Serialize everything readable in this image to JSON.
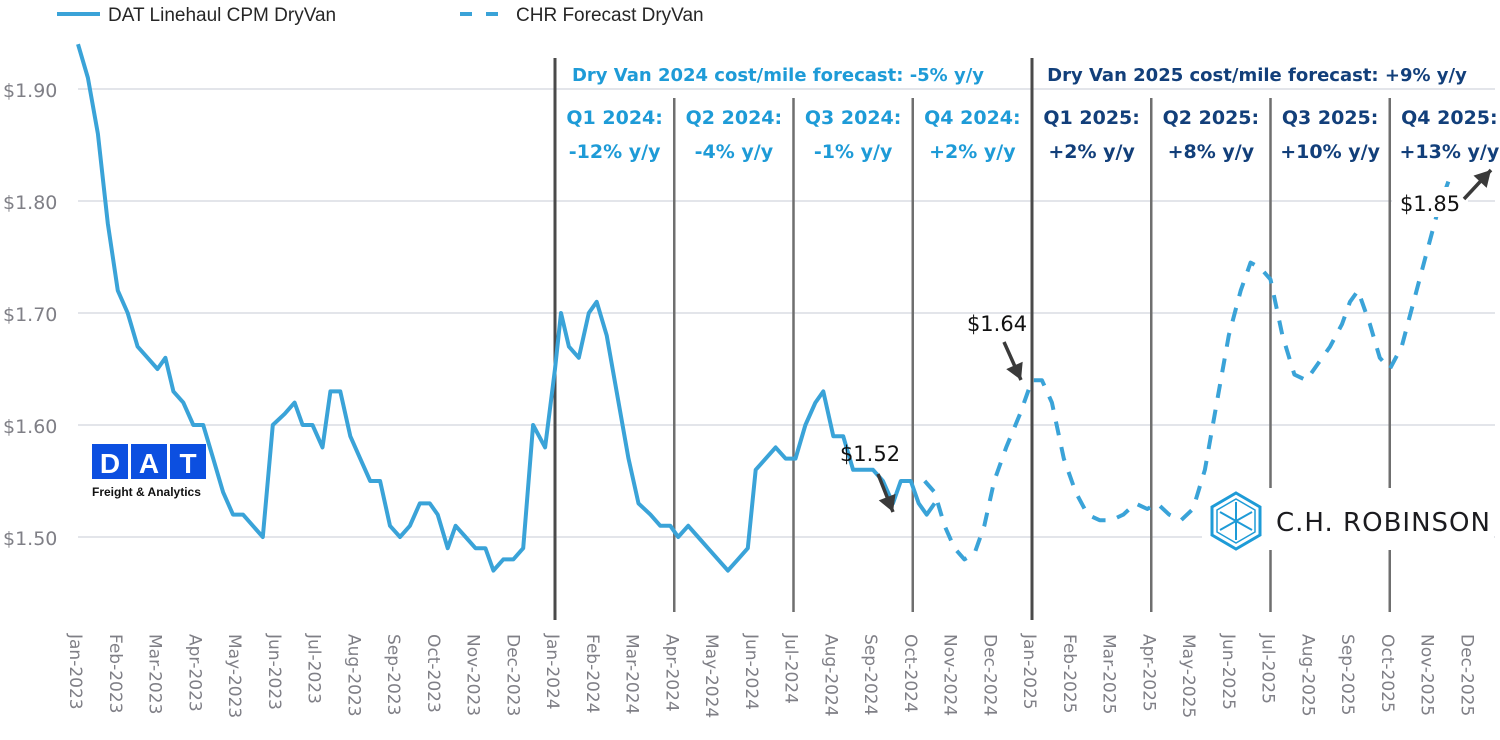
{
  "chart_data": {
    "type": "line",
    "title": "",
    "xlabel": "",
    "ylabel": "",
    "ylim": [
      1.43,
      1.95
    ],
    "yticks": [
      "$1.50",
      "$1.60",
      "$1.70",
      "$1.80",
      "$1.90"
    ],
    "ytick_values": [
      1.5,
      1.6,
      1.7,
      1.8,
      1.9
    ],
    "grid": "horizontal",
    "legend_position": "top",
    "x_categories": [
      "Jan-2023",
      "Feb-2023",
      "Mar-2023",
      "Apr-2023",
      "May-2023",
      "Jun-2023",
      "Jul-2023",
      "Aug-2023",
      "Sep-2023",
      "Oct-2023",
      "Nov-2023",
      "Dec-2023",
      "Jan-2024",
      "Feb-2024",
      "Mar-2024",
      "Apr-2024",
      "May-2024",
      "Jun-2024",
      "Jul-2024",
      "Aug-2024",
      "Sep-2024",
      "Oct-2024",
      "Nov-2024",
      "Dec-2024",
      "Jan-2025",
      "Feb-2025",
      "Mar-2025",
      "Apr-2025",
      "May-2025",
      "Jun-2025",
      "Jul-2025",
      "Aug-2025",
      "Sep-2025",
      "Oct-2025",
      "Nov-2025",
      "Dec-2025"
    ],
    "series": [
      {
        "name": "DAT Linehaul CPM DryVan",
        "style": "solid",
        "color": "#3aa3d8",
        "points_month_value": [
          [
            0,
            1.94
          ],
          [
            0.25,
            1.91
          ],
          [
            0.5,
            1.86
          ],
          [
            0.75,
            1.78
          ],
          [
            1.0,
            1.72
          ],
          [
            1.25,
            1.7
          ],
          [
            1.5,
            1.67
          ],
          [
            1.75,
            1.66
          ],
          [
            2.0,
            1.65
          ],
          [
            2.2,
            1.66
          ],
          [
            2.4,
            1.63
          ],
          [
            2.65,
            1.62
          ],
          [
            2.9,
            1.6
          ],
          [
            3.15,
            1.6
          ],
          [
            3.4,
            1.57
          ],
          [
            3.65,
            1.54
          ],
          [
            3.9,
            1.52
          ],
          [
            4.15,
            1.52
          ],
          [
            4.4,
            1.51
          ],
          [
            4.65,
            1.5
          ],
          [
            4.9,
            1.6
          ],
          [
            5.2,
            1.61
          ],
          [
            5.45,
            1.62
          ],
          [
            5.65,
            1.6
          ],
          [
            5.9,
            1.6
          ],
          [
            6.15,
            1.58
          ],
          [
            6.35,
            1.63
          ],
          [
            6.6,
            1.63
          ],
          [
            6.85,
            1.59
          ],
          [
            7.1,
            1.57
          ],
          [
            7.35,
            1.55
          ],
          [
            7.6,
            1.55
          ],
          [
            7.85,
            1.51
          ],
          [
            8.1,
            1.5
          ],
          [
            8.35,
            1.51
          ],
          [
            8.6,
            1.53
          ],
          [
            8.85,
            1.53
          ],
          [
            9.05,
            1.52
          ],
          [
            9.3,
            1.49
          ],
          [
            9.5,
            1.51
          ],
          [
            9.75,
            1.5
          ],
          [
            10.0,
            1.49
          ],
          [
            10.25,
            1.49
          ],
          [
            10.45,
            1.47
          ],
          [
            10.7,
            1.48
          ],
          [
            10.95,
            1.48
          ],
          [
            11.2,
            1.49
          ],
          [
            11.45,
            1.6
          ],
          [
            11.75,
            1.58
          ],
          [
            12.0,
            1.65
          ],
          [
            12.15,
            1.7
          ],
          [
            12.35,
            1.67
          ],
          [
            12.6,
            1.66
          ],
          [
            12.85,
            1.7
          ],
          [
            13.05,
            1.71
          ],
          [
            13.3,
            1.68
          ],
          [
            13.55,
            1.63
          ],
          [
            13.85,
            1.57
          ],
          [
            14.1,
            1.53
          ],
          [
            14.4,
            1.52
          ],
          [
            14.65,
            1.51
          ],
          [
            14.9,
            1.51
          ],
          [
            15.1,
            1.5
          ],
          [
            15.35,
            1.51
          ],
          [
            15.6,
            1.5
          ],
          [
            15.85,
            1.49
          ],
          [
            16.1,
            1.48
          ],
          [
            16.35,
            1.47
          ],
          [
            16.6,
            1.48
          ],
          [
            16.85,
            1.49
          ],
          [
            17.05,
            1.56
          ],
          [
            17.3,
            1.57
          ],
          [
            17.55,
            1.58
          ],
          [
            17.8,
            1.57
          ],
          [
            18.05,
            1.57
          ],
          [
            18.3,
            1.6
          ],
          [
            18.55,
            1.62
          ],
          [
            18.75,
            1.63
          ],
          [
            19.0,
            1.59
          ],
          [
            19.25,
            1.59
          ],
          [
            19.5,
            1.56
          ],
          [
            19.75,
            1.56
          ],
          [
            20.0,
            1.56
          ],
          [
            20.25,
            1.55
          ],
          [
            20.5,
            1.53
          ],
          [
            20.7,
            1.55
          ],
          [
            20.95,
            1.55
          ],
          [
            21.15,
            1.53
          ],
          [
            21.35,
            1.52
          ],
          [
            21.55,
            1.53
          ]
        ]
      },
      {
        "name": "CHR Forecast DryVan",
        "style": "dashed",
        "color": "#3aa3d8",
        "points_month_value": [
          [
            21.3,
            1.55
          ],
          [
            21.55,
            1.54
          ],
          [
            21.8,
            1.51
          ],
          [
            22.05,
            1.49
          ],
          [
            22.3,
            1.48
          ],
          [
            22.55,
            1.485
          ],
          [
            22.8,
            1.51
          ],
          [
            23.05,
            1.55
          ],
          [
            23.35,
            1.58
          ],
          [
            23.7,
            1.61
          ],
          [
            24.0,
            1.64
          ],
          [
            24.25,
            1.64
          ],
          [
            24.5,
            1.62
          ],
          [
            24.8,
            1.57
          ],
          [
            25.1,
            1.54
          ],
          [
            25.4,
            1.52
          ],
          [
            25.7,
            1.515
          ],
          [
            26.0,
            1.515
          ],
          [
            26.3,
            1.52
          ],
          [
            26.6,
            1.53
          ],
          [
            26.9,
            1.525
          ],
          [
            27.15,
            1.53
          ],
          [
            27.45,
            1.52
          ],
          [
            27.75,
            1.515
          ],
          [
            28.05,
            1.525
          ],
          [
            28.35,
            1.56
          ],
          [
            28.65,
            1.62
          ],
          [
            28.95,
            1.68
          ],
          [
            29.25,
            1.72
          ],
          [
            29.5,
            1.745
          ],
          [
            29.75,
            1.74
          ],
          [
            30.0,
            1.73
          ],
          [
            30.3,
            1.68
          ],
          [
            30.6,
            1.645
          ],
          [
            30.9,
            1.64
          ],
          [
            31.2,
            1.655
          ],
          [
            31.5,
            1.67
          ],
          [
            31.8,
            1.69
          ],
          [
            32.0,
            1.71
          ],
          [
            32.2,
            1.72
          ],
          [
            32.5,
            1.69
          ],
          [
            32.75,
            1.66
          ],
          [
            33.0,
            1.65
          ],
          [
            33.3,
            1.67
          ],
          [
            33.6,
            1.71
          ],
          [
            33.9,
            1.75
          ],
          [
            34.2,
            1.79
          ],
          [
            34.5,
            1.82
          ]
        ]
      }
    ],
    "legend": [
      {
        "label": "DAT Linehaul CPM DryVan",
        "style": "solid"
      },
      {
        "label": "CHR Forecast DryVan",
        "style": "dashed"
      }
    ],
    "annotations": [
      {
        "label": "$1.52",
        "month": 21.45,
        "value": 1.52
      },
      {
        "label": "$1.64",
        "month": 24.0,
        "value": 1.64
      },
      {
        "label": "$1.85",
        "month": 35.7,
        "value": 1.83
      }
    ],
    "year_forecasts": [
      {
        "text": "Dry Van 2024 cost/mile forecast: -5% y/y",
        "color": "#1e9bd7"
      },
      {
        "text": "Dry Van 2025 cost/mile forecast: +9% y/y",
        "color": "#123f7a"
      }
    ],
    "quarters": [
      {
        "label": "Q1 2024:",
        "change": "-12% y/y",
        "color": "#1e9bd7"
      },
      {
        "label": "Q2 2024:",
        "change": "-4% y/y",
        "color": "#1e9bd7"
      },
      {
        "label": "Q3 2024:",
        "change": "-1% y/y",
        "color": "#1e9bd7"
      },
      {
        "label": "Q4 2024:",
        "change": "+2% y/y",
        "color": "#1e9bd7"
      },
      {
        "label": "Q1 2025:",
        "change": "+2% y/y",
        "color": "#123f7a"
      },
      {
        "label": "Q2 2025:",
        "change": "+8% y/y",
        "color": "#123f7a"
      },
      {
        "label": "Q3 2025:",
        "change": "+10% y/y",
        "color": "#123f7a"
      },
      {
        "label": "Q4 2025:",
        "change": "+13% y/y",
        "color": "#123f7a"
      }
    ]
  },
  "logos": {
    "dat": {
      "letters": [
        "D",
        "A",
        "T"
      ],
      "tagline": "Freight & Analytics",
      "color": "#0c4fe0"
    },
    "chr": {
      "text": "C.H. ROBINSON",
      "color": "#1e9bd7"
    }
  }
}
